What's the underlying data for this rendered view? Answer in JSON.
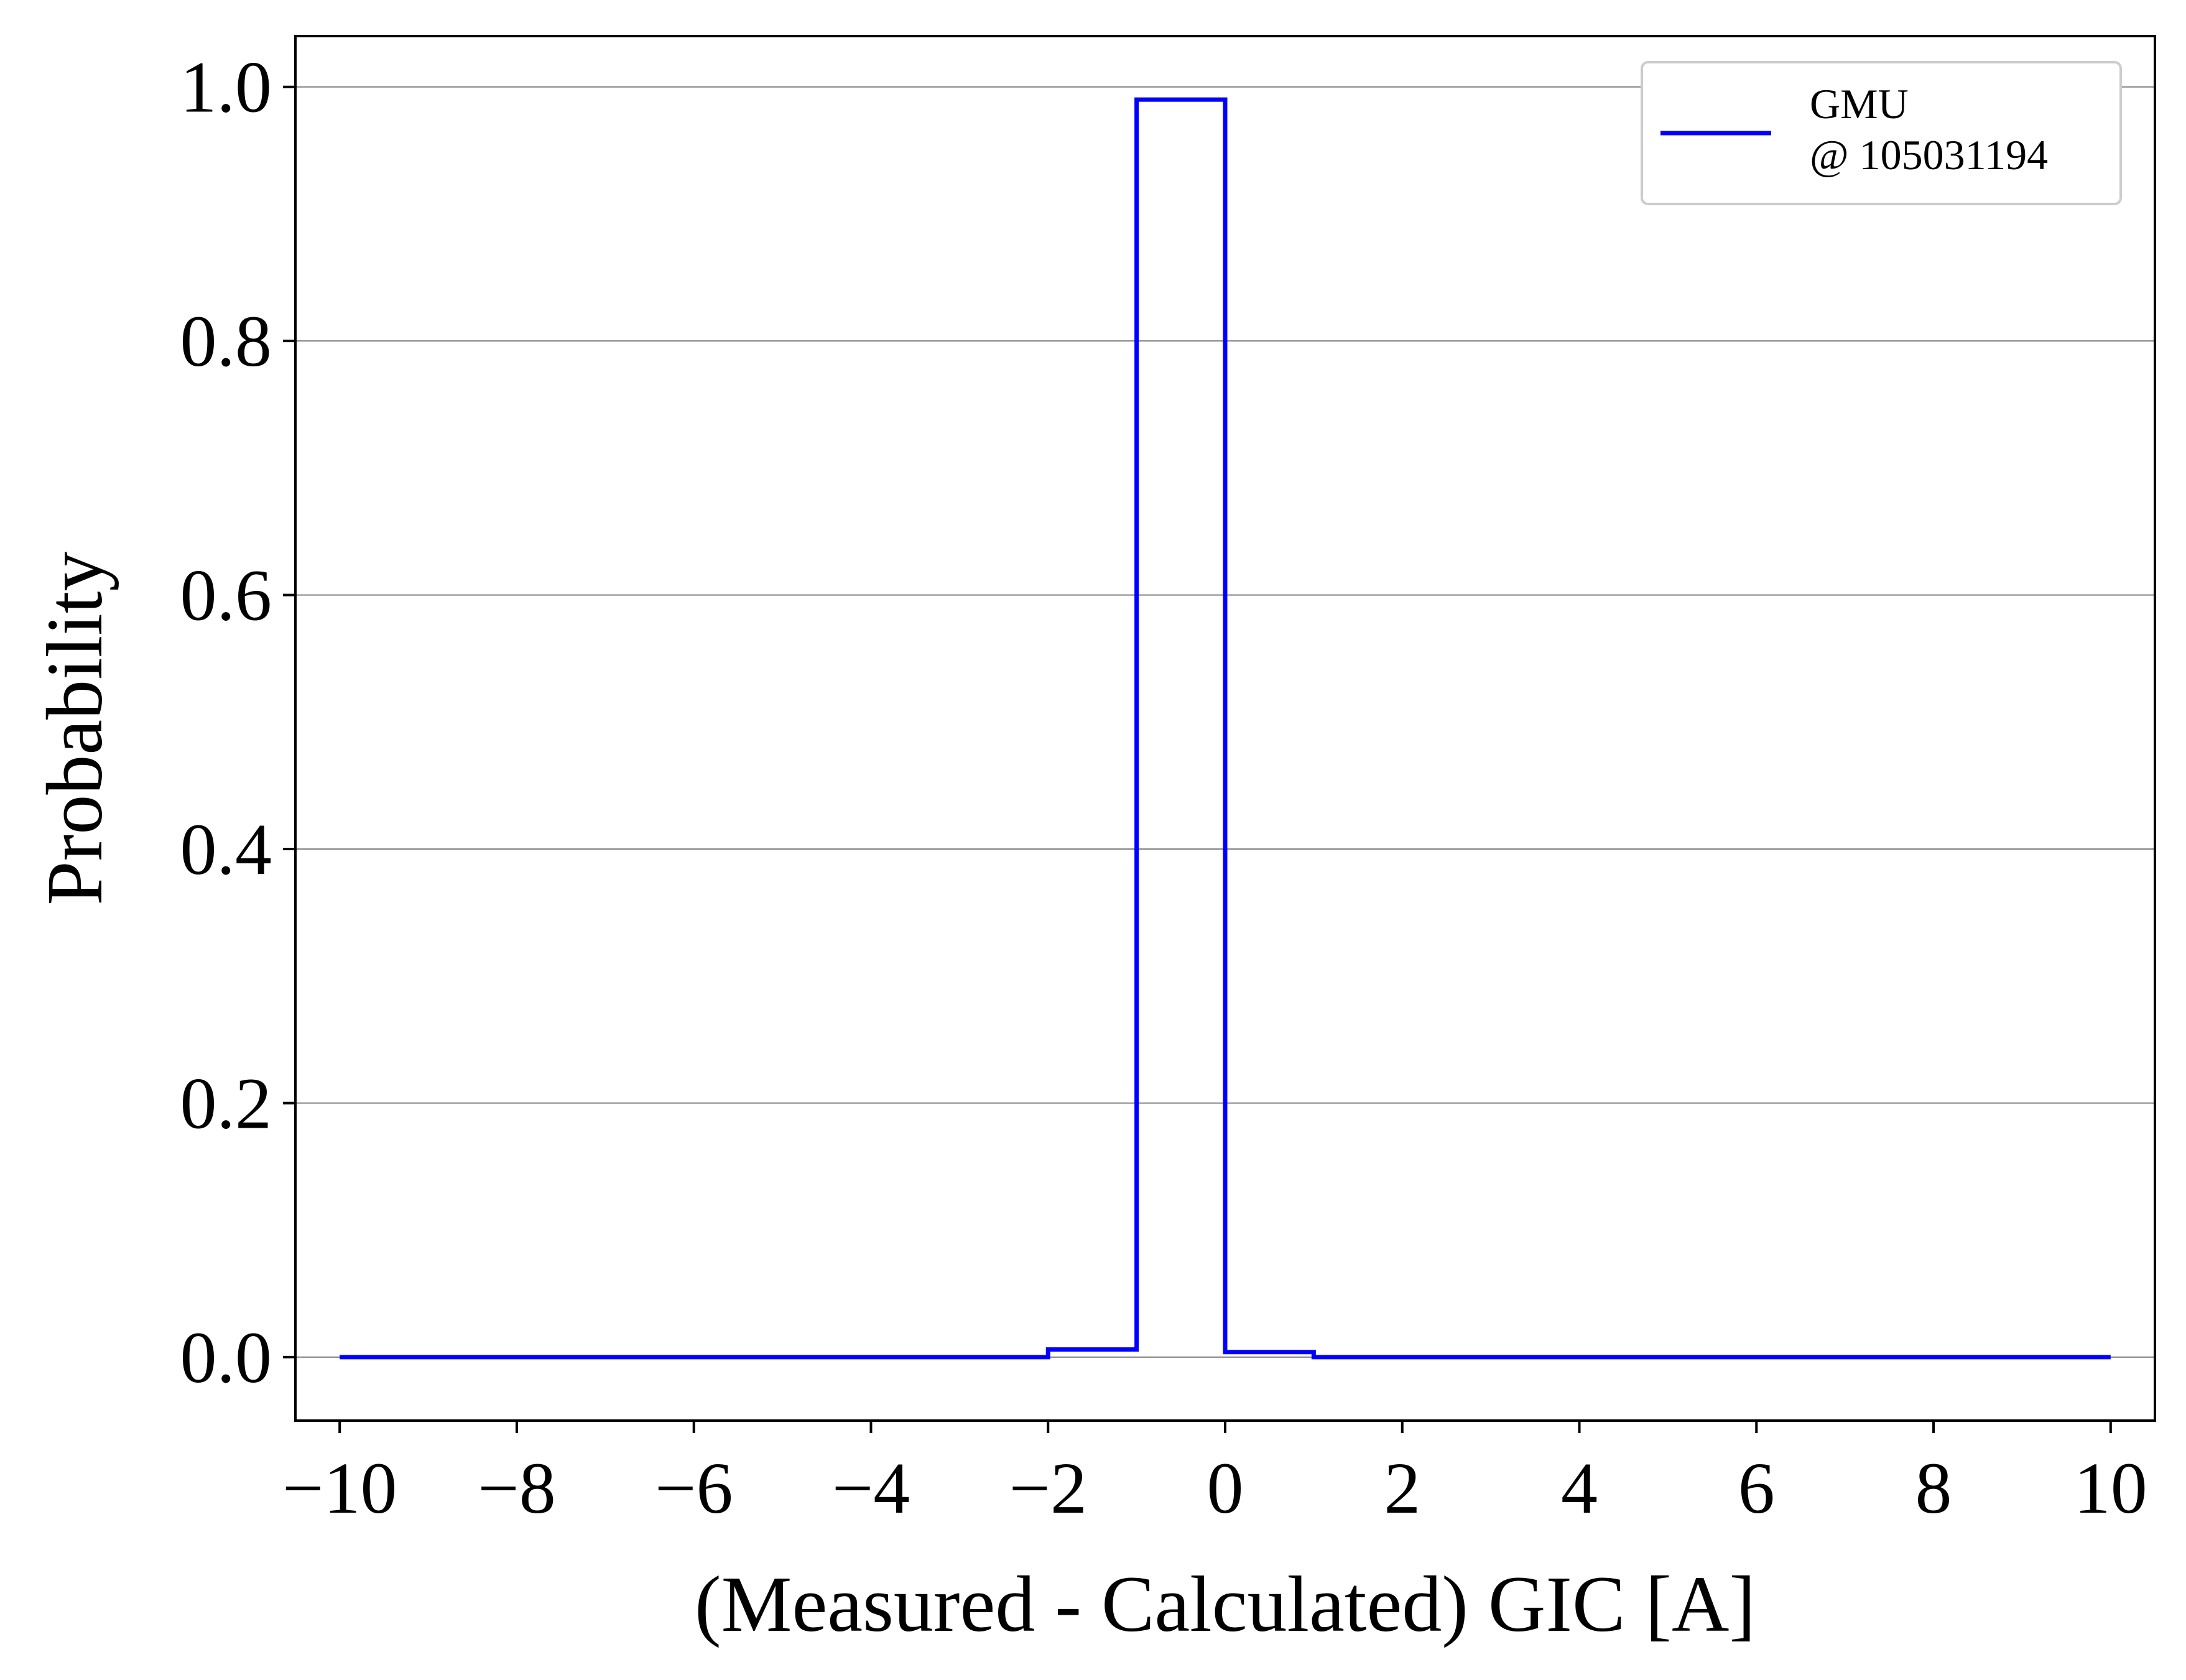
{
  "chart_data": {
    "type": "line",
    "step": "post",
    "xlabel": "(Measured - Calculated) GIC [A]",
    "ylabel": "Probability",
    "xlim": [
      -10.5,
      10.5
    ],
    "ylim": [
      -0.05,
      1.04
    ],
    "xticks": [
      -10,
      -8,
      -6,
      -4,
      -2,
      0,
      2,
      4,
      6,
      8,
      10
    ],
    "xtick_labels": [
      "−10",
      "−8",
      "−6",
      "−4",
      "−2",
      "0",
      "2",
      "4",
      "6",
      "8",
      "10"
    ],
    "yticks": [
      0.0,
      0.2,
      0.4,
      0.6,
      0.8,
      1.0
    ],
    "ytick_labels": [
      "0.0",
      "0.2",
      "0.4",
      "0.6",
      "0.8",
      "1.0"
    ],
    "grid": "y",
    "legend_position": "top-right",
    "series": [
      {
        "name_lines": [
          "GMU",
          "@ 105031194"
        ],
        "color": "#0000ff",
        "x": [
          -10,
          -9,
          -8,
          -7,
          -6,
          -5,
          -4,
          -3,
          -2,
          -1,
          0,
          1,
          2,
          3,
          4,
          5,
          6,
          7,
          8,
          9,
          10
        ],
        "values": [
          0,
          0,
          0,
          0,
          0,
          0,
          0,
          0,
          0.006,
          0.99,
          0.004,
          0,
          0,
          0,
          0,
          0,
          0,
          0,
          0,
          0,
          0
        ]
      }
    ]
  }
}
